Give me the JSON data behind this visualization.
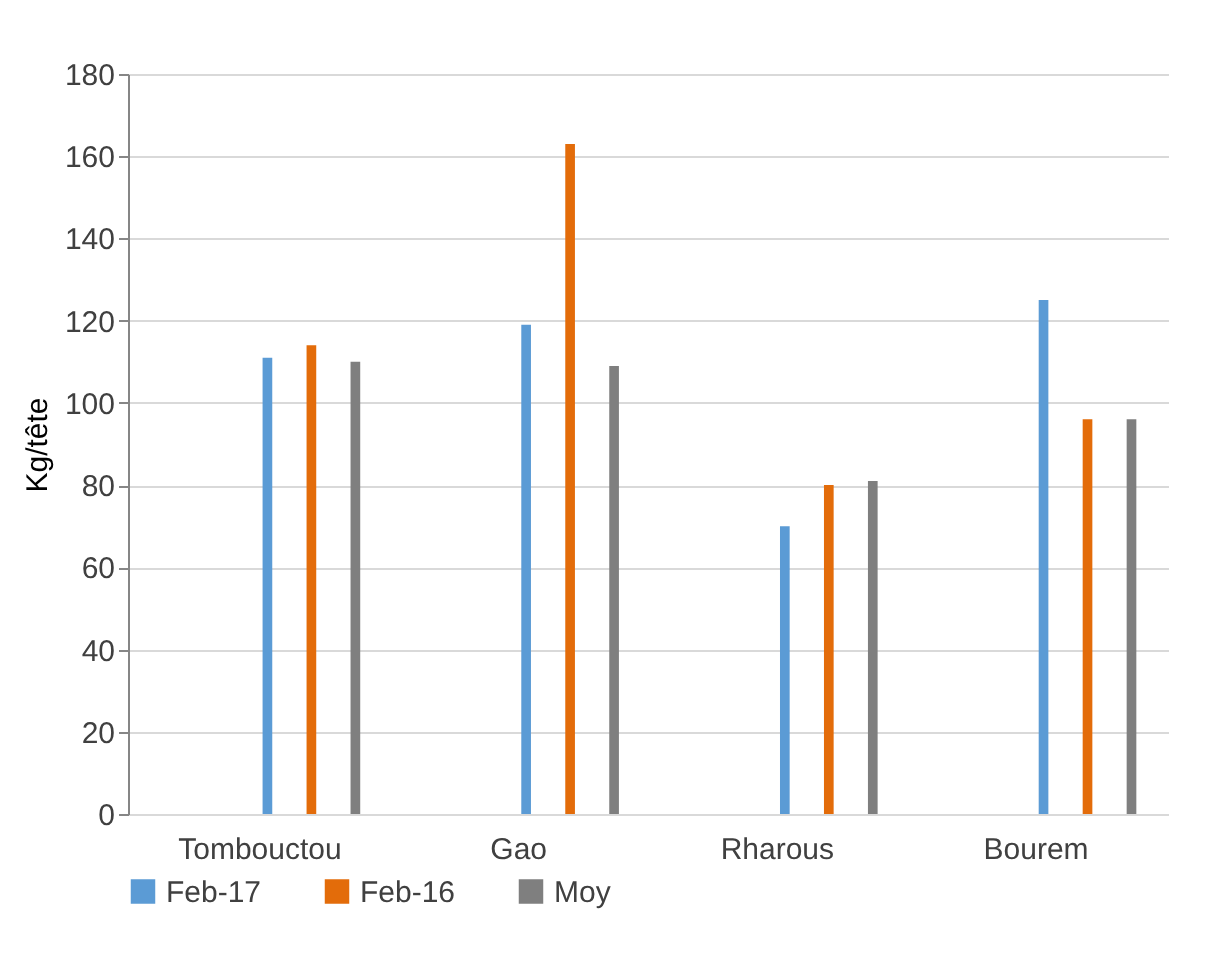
{
  "chart_data": {
    "type": "bar",
    "ylabel": "Kg/tête",
    "categories": [
      "Tombouctou",
      "Gao",
      "Rharous",
      "Bourem"
    ],
    "series": [
      {
        "name": "Feb-17",
        "color": "#5b9bd5",
        "values": [
          111,
          119,
          70,
          125
        ]
      },
      {
        "name": "Feb-16",
        "color": "#e36c0a",
        "values": [
          114,
          163,
          80,
          96
        ]
      },
      {
        "name": "Moy",
        "color": "#7f7f7f",
        "values": [
          110,
          109,
          81,
          96
        ]
      }
    ],
    "ylim": [
      0,
      180
    ],
    "yticks": [
      0,
      20,
      40,
      60,
      80,
      100,
      120,
      140,
      160,
      180
    ],
    "grid": true,
    "legend": "bottom"
  }
}
